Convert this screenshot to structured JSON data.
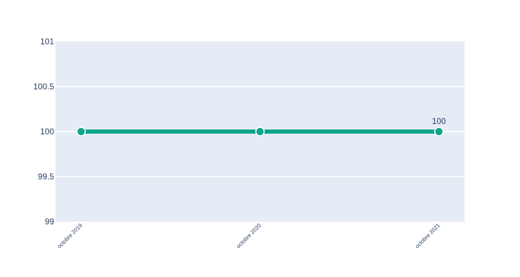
{
  "chart_data": {
    "type": "line",
    "title": "",
    "xlabel": "",
    "ylabel": "",
    "categories": [
      "octobre 2019",
      "octobre 2020",
      "octobre 2021"
    ],
    "series": [
      {
        "values": [
          100,
          100,
          100
        ],
        "color": "#0aa58a"
      }
    ],
    "ylim": [
      99,
      101
    ],
    "yticks": [
      99,
      99.5,
      100,
      100.5,
      101
    ],
    "ytick_labels": [
      "99",
      "99.5",
      "100",
      "100.5",
      "101"
    ],
    "grid": true,
    "legend": "none",
    "last_point_label": "100",
    "colors": {
      "plot_background": "#e5ecf6",
      "grid": "#ffffff",
      "text": "#2a3f5f",
      "marker_outline": "#ffffff"
    }
  }
}
